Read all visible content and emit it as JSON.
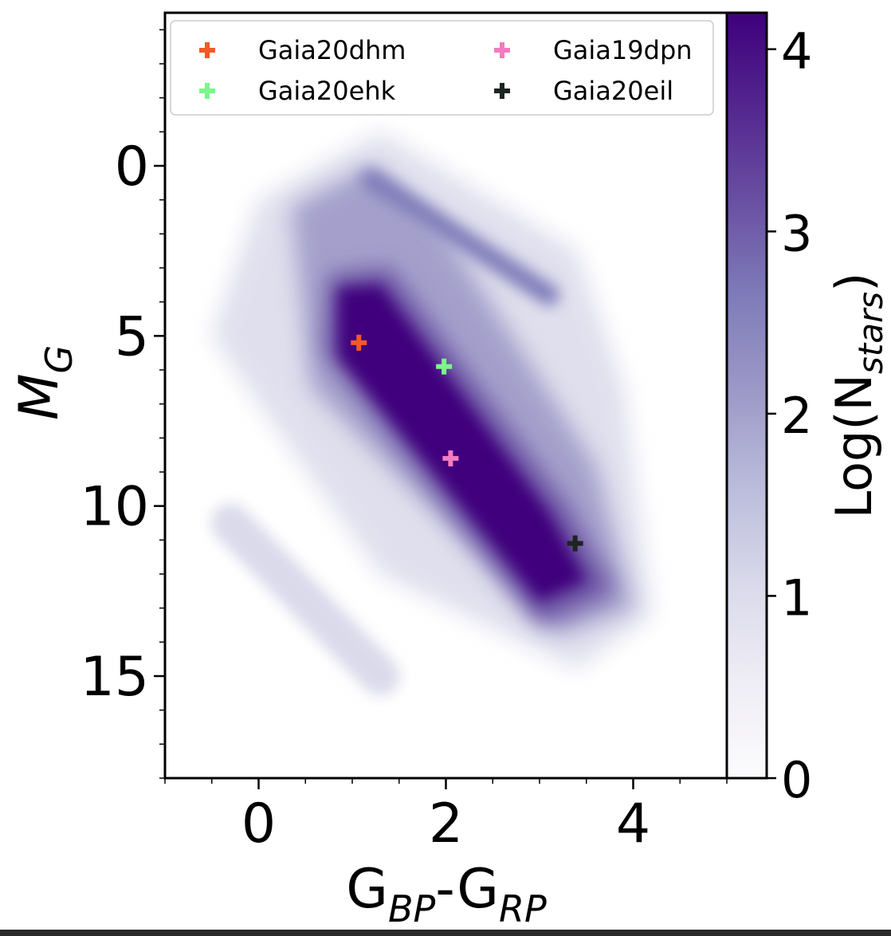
{
  "chart_data": {
    "type": "scatter",
    "subtype": "2d-density-histogram (Hess diagram) with highlighted points",
    "title": "",
    "xlabel": {
      "main": "G",
      "sub1": "BP",
      "mid": "-G",
      "sub2": "RP"
    },
    "ylabel": {
      "main": "M",
      "sub": "G"
    },
    "xlim": [
      -1.0,
      5.0
    ],
    "ylim": [
      18.0,
      -4.5
    ],
    "y_inverted": true,
    "x_major_ticks": [
      0,
      2,
      4
    ],
    "x_tick_labels": [
      "0",
      "2",
      "4"
    ],
    "y_major_ticks": [
      0,
      5,
      10,
      15
    ],
    "y_tick_labels": [
      "0",
      "5",
      "10",
      "15"
    ],
    "grid": false,
    "colormap": "Purples",
    "colorbar": {
      "label": {
        "main": "Log(N",
        "sub": "stars",
        "end": ")"
      },
      "range": [
        0,
        4.2
      ],
      "ticks": [
        0,
        1,
        2,
        3,
        4
      ],
      "tick_labels": [
        "0",
        "1",
        "2",
        "3",
        "4"
      ],
      "colors": [
        "#fcfbfd",
        "#efedf5",
        "#dadaeb",
        "#bcbddc",
        "#9e9ac8",
        "#807dba",
        "#6a51a3",
        "#54278f",
        "#3f007d"
      ]
    },
    "density_regions": [
      {
        "name": "main-sequence-core",
        "path_x": [
          0.75,
          1.4,
          3.3,
          3.8,
          3.0,
          0.7
        ],
        "path_y": [
          3.2,
          3.0,
          10.0,
          12.5,
          13.5,
          5.5
        ],
        "log_n": 4.0
      },
      {
        "name": "red-giant-branch",
        "from": [
          1.2,
          0.4
        ],
        "to": [
          3.1,
          3.8
        ],
        "log_n": 2.4
      },
      {
        "name": "white-dwarf-sequence",
        "from": [
          -0.3,
          10.5
        ],
        "to": [
          1.3,
          15.0
        ],
        "log_n": 1.3
      }
    ],
    "legend": {
      "placement": "upper-left",
      "columns": 2
    },
    "series": [
      {
        "name": "Gaia20dhm",
        "x": [
          1.07
        ],
        "y": [
          5.2
        ],
        "color": "#f05a28",
        "marker": "plus"
      },
      {
        "name": "Gaia20ehk",
        "x": [
          1.98
        ],
        "y": [
          5.9
        ],
        "color": "#7cf58a",
        "marker": "plus"
      },
      {
        "name": "Gaia19dpn",
        "x": [
          2.05
        ],
        "y": [
          8.6
        ],
        "color": "#f27cbf",
        "marker": "plus"
      },
      {
        "name": "Gaia20eil",
        "x": [
          3.38
        ],
        "y": [
          11.1
        ],
        "color": "#1c2520",
        "marker": "plus"
      }
    ]
  }
}
